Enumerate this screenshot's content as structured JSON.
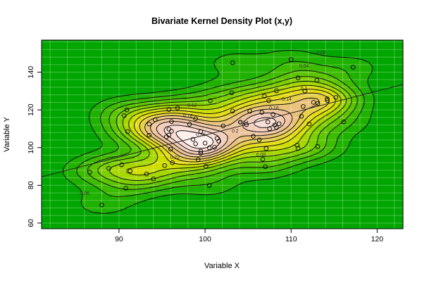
{
  "chart_data": {
    "type": "contour",
    "title": "Bivariate Kernel Density Plot (x,y)",
    "xlabel": "Variable X",
    "ylabel": "Variable Y",
    "xlim": [
      81,
      123
    ],
    "ylim": [
      57,
      157
    ],
    "x_ticks": [
      90,
      100,
      110,
      120
    ],
    "y_ticks": [
      60,
      80,
      100,
      120,
      140
    ],
    "grid": true,
    "contour_labels": [
      "0.02",
      "0.04",
      "0.06",
      "0.08",
      "0.1",
      "0.12",
      "0.14",
      "0.16",
      "0.18",
      "0.2",
      "0.22",
      "0.24",
      "0.26"
    ],
    "regression_line": {
      "x": [
        81,
        123
      ],
      "y": [
        84.5,
        133.5
      ]
    },
    "points": [
      {
        "x": 88.0,
        "y": 69.6
      },
      {
        "x": 86.6,
        "y": 87.0
      },
      {
        "x": 88.8,
        "y": 89.0
      },
      {
        "x": 90.3,
        "y": 90.9
      },
      {
        "x": 90.8,
        "y": 78.5
      },
      {
        "x": 91.3,
        "y": 87.6
      },
      {
        "x": 90.6,
        "y": 117.0
      },
      {
        "x": 90.9,
        "y": 120.0
      },
      {
        "x": 91.0,
        "y": 108.5
      },
      {
        "x": 93.2,
        "y": 86.0
      },
      {
        "x": 93.5,
        "y": 106.6
      },
      {
        "x": 93.5,
        "y": 112.5
      },
      {
        "x": 94.0,
        "y": 83.4
      },
      {
        "x": 94.2,
        "y": 114.8
      },
      {
        "x": 95.3,
        "y": 90.5
      },
      {
        "x": 95.5,
        "y": 105.7
      },
      {
        "x": 95.8,
        "y": 109.8
      },
      {
        "x": 95.8,
        "y": 120.2
      },
      {
        "x": 95.8,
        "y": 106.7
      },
      {
        "x": 96.0,
        "y": 99.2
      },
      {
        "x": 96.1,
        "y": 108.7
      },
      {
        "x": 96.1,
        "y": 113.8
      },
      {
        "x": 96.2,
        "y": 92.0
      },
      {
        "x": 96.8,
        "y": 121.0
      },
      {
        "x": 98.2,
        "y": 112.4
      },
      {
        "x": 98.6,
        "y": 104.4
      },
      {
        "x": 98.9,
        "y": 102.0
      },
      {
        "x": 98.9,
        "y": 115.3
      },
      {
        "x": 99.2,
        "y": 93.6
      },
      {
        "x": 99.5,
        "y": 98.1
      },
      {
        "x": 99.5,
        "y": 108.5
      },
      {
        "x": 99.5,
        "y": 97.0
      },
      {
        "x": 100.0,
        "y": 102.4
      },
      {
        "x": 100.1,
        "y": 90.1
      },
      {
        "x": 100.5,
        "y": 99.9
      },
      {
        "x": 100.6,
        "y": 124.8
      },
      {
        "x": 101.1,
        "y": 100.2
      },
      {
        "x": 101.4,
        "y": 104.9
      },
      {
        "x": 101.6,
        "y": 103.4
      },
      {
        "x": 102.1,
        "y": 111.5
      },
      {
        "x": 100.5,
        "y": 79.9
      },
      {
        "x": 103.1,
        "y": 129.1
      },
      {
        "x": 103.2,
        "y": 119.4
      },
      {
        "x": 103.2,
        "y": 145.0
      },
      {
        "x": 104.1,
        "y": 113.5
      },
      {
        "x": 104.8,
        "y": 112.2
      },
      {
        "x": 105.2,
        "y": 119.3
      },
      {
        "x": 105.6,
        "y": 106.0
      },
      {
        "x": 106.3,
        "y": 104.1
      },
      {
        "x": 106.6,
        "y": 118.7
      },
      {
        "x": 106.7,
        "y": 93.8
      },
      {
        "x": 106.9,
        "y": 127.3
      },
      {
        "x": 107.0,
        "y": 89.9
      },
      {
        "x": 107.1,
        "y": 99.5
      },
      {
        "x": 107.3,
        "y": 113.6
      },
      {
        "x": 107.4,
        "y": 124.9
      },
      {
        "x": 107.5,
        "y": 110.0
      },
      {
        "x": 107.9,
        "y": 117.6
      },
      {
        "x": 108.1,
        "y": 112.0
      },
      {
        "x": 108.3,
        "y": 110.6
      },
      {
        "x": 108.3,
        "y": 130.1
      },
      {
        "x": 108.6,
        "y": 112.7
      },
      {
        "x": 110.0,
        "y": 146.7
      },
      {
        "x": 110.7,
        "y": 101.3
      },
      {
        "x": 110.8,
        "y": 99.6
      },
      {
        "x": 110.8,
        "y": 137.0
      },
      {
        "x": 111.2,
        "y": 116.6
      },
      {
        "x": 111.4,
        "y": 121.8
      },
      {
        "x": 111.6,
        "y": 130.0
      },
      {
        "x": 112.1,
        "y": 112.5
      },
      {
        "x": 112.6,
        "y": 124.0
      },
      {
        "x": 113.0,
        "y": 135.7
      },
      {
        "x": 113.1,
        "y": 100.6
      },
      {
        "x": 113.1,
        "y": 123.4
      },
      {
        "x": 114.2,
        "y": 125.9
      },
      {
        "x": 114.2,
        "y": 125.0
      },
      {
        "x": 115.2,
        "y": 126.6
      },
      {
        "x": 116.1,
        "y": 113.6
      },
      {
        "x": 117.2,
        "y": 142.6
      }
    ]
  }
}
